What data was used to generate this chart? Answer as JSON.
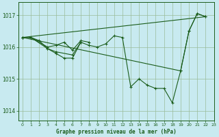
{
  "background_color": "#c8eaf0",
  "grid_color": "#99bb99",
  "line_color": "#1a5c1a",
  "xlabel": "Graphe pression niveau de la mer (hPa)",
  "ylim": [
    1013.7,
    1017.4
  ],
  "xlim": [
    -0.5,
    23
  ],
  "yticks": [
    1014,
    1015,
    1016,
    1017
  ],
  "xticks": [
    0,
    1,
    2,
    3,
    4,
    5,
    6,
    7,
    8,
    9,
    10,
    11,
    12,
    13,
    14,
    15,
    16,
    17,
    18,
    19,
    20,
    21,
    22,
    23
  ],
  "xtick_labels": [
    "0",
    "1",
    "2",
    "3",
    "4",
    "5",
    "6",
    "7",
    "8",
    "9",
    "10",
    "11",
    "12",
    "13",
    "14",
    "15",
    "16",
    "17",
    "18",
    "19",
    "20",
    "21",
    "22",
    "23"
  ],
  "series1_x": [
    0,
    1,
    2,
    3,
    4,
    5,
    6,
    7,
    8,
    9,
    10,
    11,
    12,
    13,
    14,
    15,
    16,
    17,
    18,
    19,
    20,
    21,
    22
  ],
  "series1_y": [
    1016.3,
    1016.3,
    1016.2,
    1015.95,
    1015.8,
    1015.65,
    1015.65,
    1016.15,
    1016.05,
    1016.0,
    1016.1,
    1016.35,
    1016.3,
    1014.75,
    1015.0,
    1014.8,
    1014.7,
    1014.7,
    1014.25,
    1015.25,
    1016.5,
    1017.05,
    1016.95
  ],
  "series2_x": [
    0,
    1,
    3,
    4,
    5,
    6,
    7,
    8
  ],
  "series2_y": [
    1016.3,
    1016.3,
    1016.0,
    1016.05,
    1016.15,
    1015.9,
    1016.2,
    1016.15
  ],
  "series3_x": [
    0,
    1,
    3,
    4,
    6,
    7
  ],
  "series3_y": [
    1016.3,
    1016.3,
    1015.95,
    1015.85,
    1015.75,
    1016.15
  ],
  "series4_x": [
    0,
    22
  ],
  "series4_y": [
    1016.3,
    1016.95
  ],
  "series5_x": [
    0,
    19,
    20,
    21,
    22
  ],
  "series5_y": [
    1016.3,
    1015.25,
    1016.5,
    1017.05,
    1016.95
  ]
}
